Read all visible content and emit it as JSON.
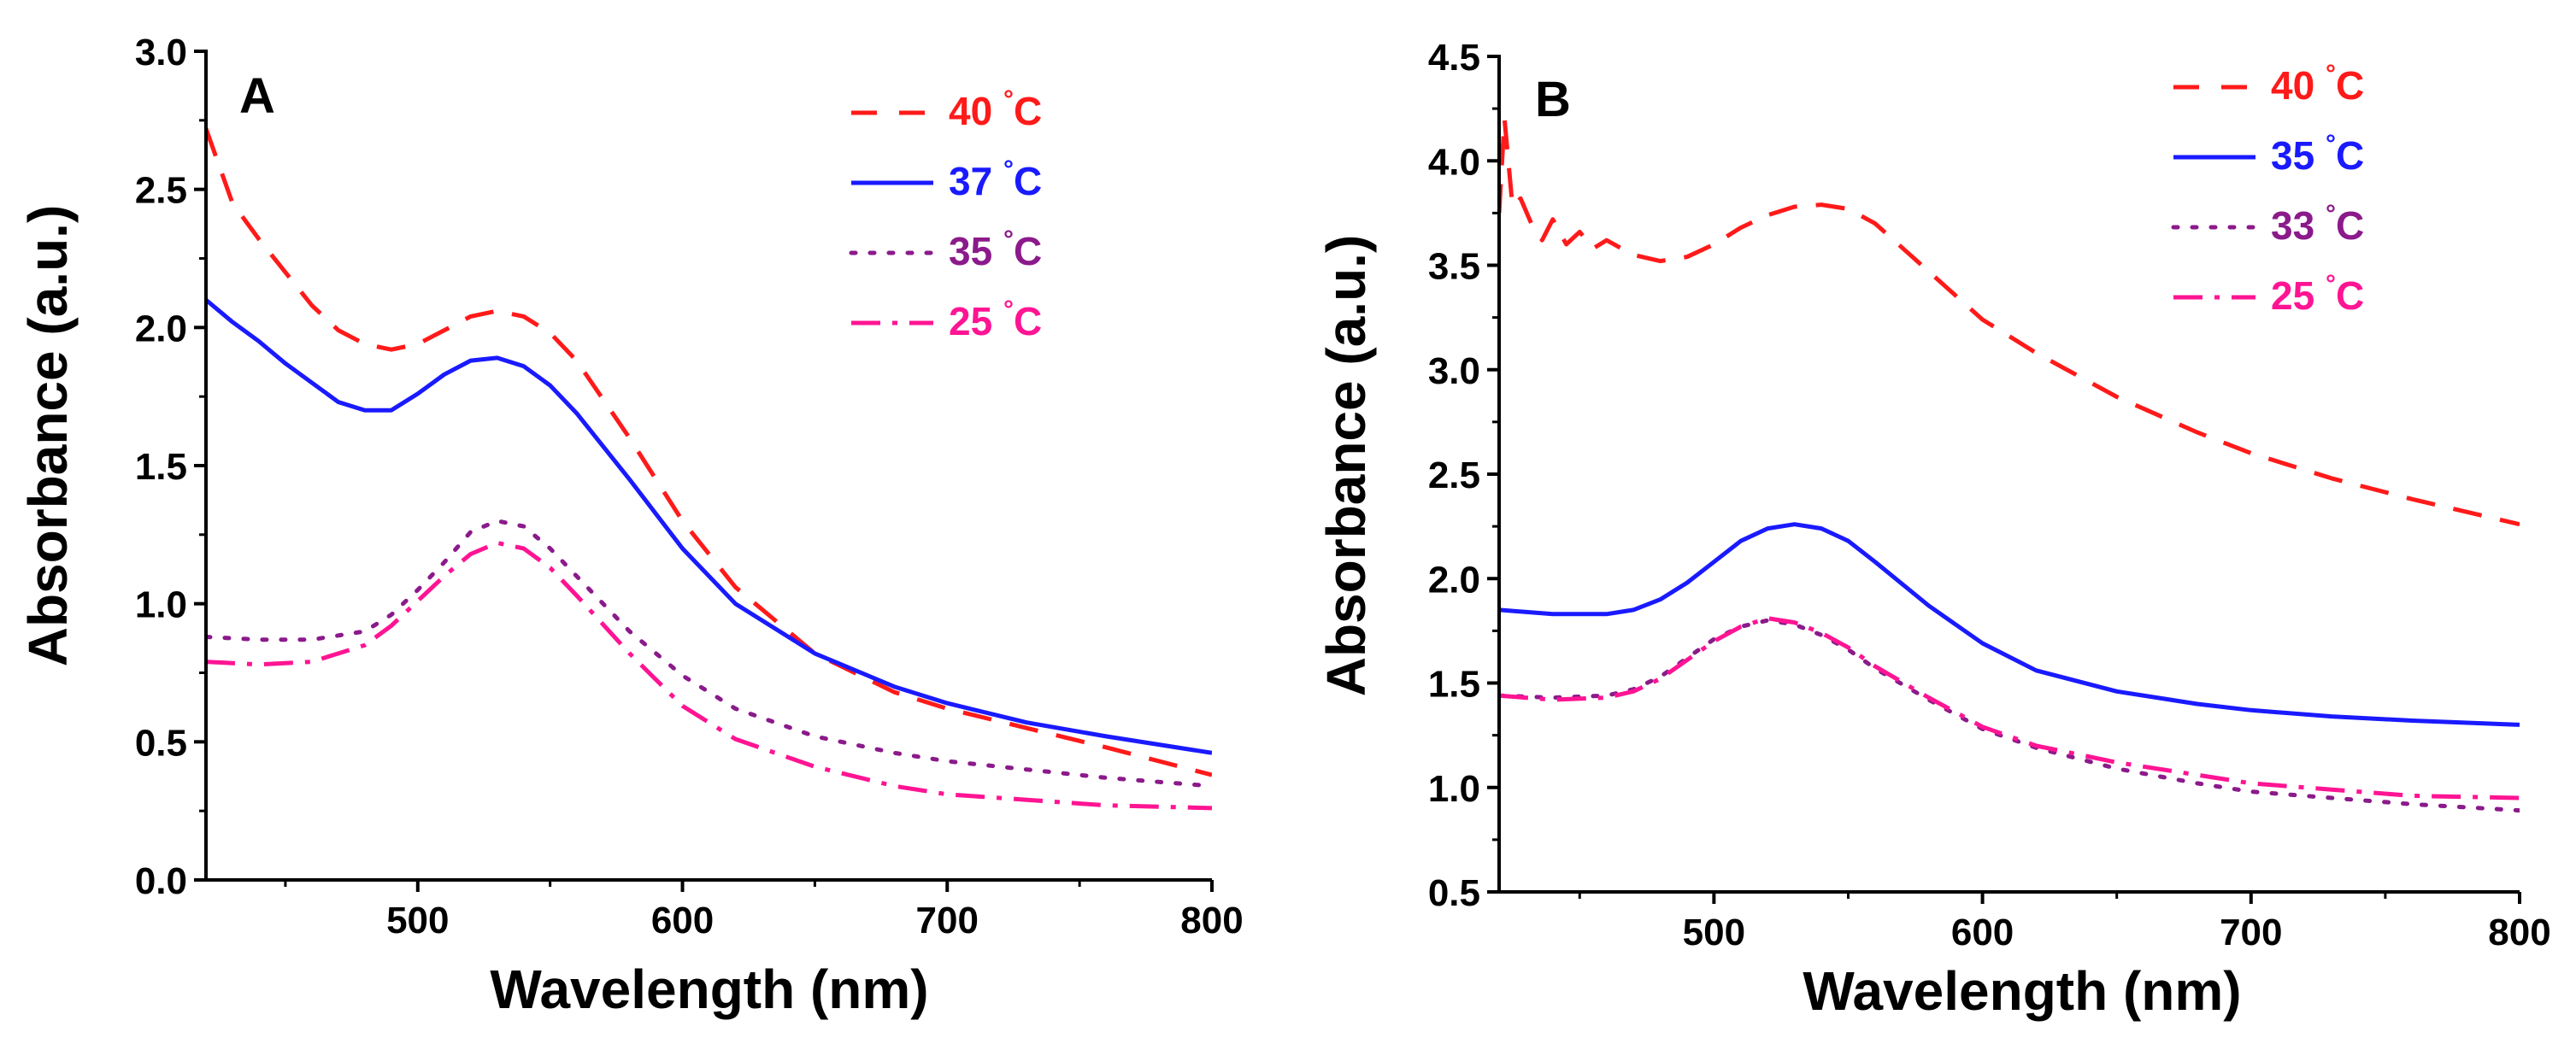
{
  "chart_data": [
    {
      "type": "line",
      "panel": "A",
      "xlabel": "Wavelength (nm)",
      "ylabel": "Absorbance (a.u.)",
      "xlim": [
        420,
        800
      ],
      "ylim": [
        0.0,
        3.0
      ],
      "xticks": [
        500,
        600,
        700,
        800
      ],
      "xtick_labels": [
        "500",
        "600",
        "700",
        "800"
      ],
      "yticks": [
        0.0,
        0.5,
        1.0,
        1.5,
        2.0,
        2.5,
        3.0
      ],
      "ytick_labels": [
        "0.0",
        "0.5",
        "1.0",
        "1.5",
        "2.0",
        "2.5",
        "3.0"
      ],
      "legend_position": "top-right",
      "series": [
        {
          "name": "40",
          "unit": "°C",
          "color": "#ff1a1a",
          "style": "dashed",
          "x": [
            420,
            430,
            440,
            450,
            460,
            470,
            480,
            490,
            500,
            510,
            520,
            530,
            540,
            550,
            560,
            580,
            600,
            620,
            650,
            680,
            700,
            730,
            760,
            800
          ],
          "values": [
            2.72,
            2.45,
            2.32,
            2.2,
            2.08,
            1.99,
            1.94,
            1.92,
            1.94,
            1.99,
            2.04,
            2.06,
            2.04,
            1.98,
            1.88,
            1.6,
            1.3,
            1.06,
            0.82,
            0.68,
            0.62,
            0.55,
            0.48,
            0.38
          ]
        },
        {
          "name": "37",
          "unit": "°C",
          "color": "#1a1aff",
          "style": "solid",
          "x": [
            420,
            430,
            440,
            450,
            460,
            470,
            480,
            490,
            500,
            510,
            520,
            530,
            540,
            550,
            560,
            580,
            600,
            620,
            650,
            680,
            700,
            730,
            760,
            800
          ],
          "values": [
            2.1,
            2.02,
            1.95,
            1.87,
            1.8,
            1.73,
            1.7,
            1.7,
            1.76,
            1.83,
            1.88,
            1.89,
            1.86,
            1.79,
            1.69,
            1.45,
            1.2,
            1.0,
            0.82,
            0.7,
            0.64,
            0.57,
            0.52,
            0.46
          ]
        },
        {
          "name": "35",
          "unit": "°C",
          "color": "#8b1a8b",
          "style": "dotted",
          "x": [
            420,
            440,
            460,
            480,
            490,
            500,
            510,
            520,
            530,
            540,
            550,
            560,
            580,
            600,
            620,
            650,
            680,
            700,
            730,
            760,
            800
          ],
          "values": [
            0.88,
            0.87,
            0.87,
            0.9,
            0.96,
            1.05,
            1.15,
            1.26,
            1.3,
            1.28,
            1.2,
            1.1,
            0.9,
            0.74,
            0.62,
            0.52,
            0.46,
            0.43,
            0.4,
            0.37,
            0.34
          ]
        },
        {
          "name": "25",
          "unit": "°C",
          "color": "#ff1493",
          "style": "dashdot",
          "x": [
            420,
            440,
            460,
            480,
            490,
            500,
            510,
            520,
            530,
            540,
            550,
            560,
            580,
            600,
            620,
            650,
            680,
            700,
            730,
            760,
            800
          ],
          "values": [
            0.79,
            0.78,
            0.79,
            0.85,
            0.92,
            1.01,
            1.1,
            1.18,
            1.22,
            1.2,
            1.13,
            1.03,
            0.82,
            0.63,
            0.51,
            0.41,
            0.34,
            0.31,
            0.29,
            0.27,
            0.26
          ]
        }
      ]
    },
    {
      "type": "line",
      "panel": "B",
      "xlabel": "Wavelength (nm)",
      "ylabel": "Absorbance (a.u.)",
      "xlim": [
        420,
        800
      ],
      "ylim": [
        0.5,
        4.5
      ],
      "xticks": [
        500,
        600,
        700,
        800
      ],
      "xtick_labels": [
        "500",
        "600",
        "700",
        "800"
      ],
      "yticks": [
        0.5,
        1.0,
        1.5,
        2.0,
        2.5,
        3.0,
        3.5,
        4.0,
        4.5
      ],
      "ytick_labels": [
        "0.5",
        "1.0",
        "1.5",
        "2.0",
        "2.5",
        "3.0",
        "3.5",
        "4.0",
        "4.5"
      ],
      "legend_position": "top-right",
      "series": [
        {
          "name": "40",
          "unit": "°C",
          "color": "#ff1a1a",
          "style": "dashed",
          "x": [
            420,
            422,
            425,
            428,
            432,
            436,
            440,
            445,
            450,
            455,
            460,
            470,
            480,
            490,
            500,
            510,
            520,
            530,
            540,
            550,
            560,
            580,
            600,
            620,
            650,
            680,
            700,
            730,
            760,
            800
          ],
          "values": [
            3.75,
            4.2,
            3.78,
            3.82,
            3.7,
            3.62,
            3.72,
            3.6,
            3.66,
            3.58,
            3.62,
            3.55,
            3.52,
            3.54,
            3.6,
            3.68,
            3.74,
            3.78,
            3.79,
            3.77,
            3.7,
            3.47,
            3.24,
            3.08,
            2.87,
            2.7,
            2.6,
            2.48,
            2.38,
            2.26
          ]
        },
        {
          "name": "35",
          "unit": "°C",
          "color": "#1a1aff",
          "style": "solid",
          "x": [
            420,
            440,
            460,
            470,
            480,
            490,
            500,
            510,
            520,
            530,
            540,
            550,
            560,
            580,
            600,
            620,
            650,
            680,
            700,
            730,
            760,
            800
          ],
          "values": [
            1.85,
            1.83,
            1.83,
            1.85,
            1.9,
            1.98,
            2.08,
            2.18,
            2.24,
            2.26,
            2.24,
            2.18,
            2.08,
            1.87,
            1.69,
            1.56,
            1.46,
            1.4,
            1.37,
            1.34,
            1.32,
            1.3
          ]
        },
        {
          "name": "33",
          "unit": "°C",
          "color": "#8b1a8b",
          "style": "dotted",
          "x": [
            420,
            440,
            460,
            470,
            480,
            490,
            500,
            510,
            520,
            530,
            540,
            550,
            560,
            580,
            600,
            620,
            650,
            680,
            700,
            730,
            760,
            800
          ],
          "values": [
            1.44,
            1.43,
            1.44,
            1.47,
            1.53,
            1.62,
            1.71,
            1.77,
            1.8,
            1.78,
            1.73,
            1.66,
            1.57,
            1.42,
            1.28,
            1.19,
            1.09,
            1.02,
            0.98,
            0.95,
            0.92,
            0.89
          ]
        },
        {
          "name": "25",
          "unit": "°C",
          "color": "#ff1493",
          "style": "dashdot",
          "x": [
            420,
            440,
            460,
            470,
            480,
            490,
            500,
            510,
            520,
            530,
            540,
            550,
            560,
            580,
            600,
            620,
            650,
            680,
            700,
            730,
            760,
            800
          ],
          "values": [
            1.44,
            1.42,
            1.43,
            1.46,
            1.52,
            1.61,
            1.7,
            1.77,
            1.81,
            1.79,
            1.74,
            1.67,
            1.58,
            1.43,
            1.29,
            1.2,
            1.12,
            1.06,
            1.02,
            0.99,
            0.96,
            0.95
          ]
        }
      ]
    }
  ]
}
